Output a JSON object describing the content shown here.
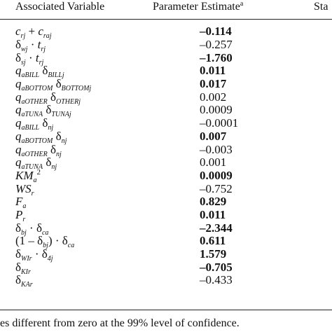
{
  "header": {
    "variable": "Associated Variable",
    "estimate": "Parameter Estimate",
    "estimate_sup": "a",
    "third_partial": "Sta"
  },
  "rows": [
    {
      "variable": "c_rj + c_raj",
      "estimate": "–0.114",
      "bold": true
    },
    {
      "variable": "δ_wj · t_rj",
      "estimate": "–0.257",
      "bold": false
    },
    {
      "variable": "δ_sj · t_rj",
      "estimate": "–1.760",
      "bold": true
    },
    {
      "variable": "q_aBILL δ_BILLj",
      "estimate": "0.011",
      "bold": true
    },
    {
      "variable": "q_aBOTTOM δ_BOTTOMj",
      "estimate": "0.017",
      "bold": true
    },
    {
      "variable": "q_aOTHER δ_OTHERj",
      "estimate": "0.002",
      "bold": false
    },
    {
      "variable": "q_aTUNA δ_TUNAj",
      "estimate": "0.0009",
      "bold": false
    },
    {
      "variable": "q_aBILL δ_nj",
      "estimate": "–0.0001",
      "bold": false
    },
    {
      "variable": "q_aBOTTOM δ_nj",
      "estimate": "0.007",
      "bold": true
    },
    {
      "variable": "q_aOTHER δ_nj",
      "estimate": "–0.003",
      "bold": false
    },
    {
      "variable": "q_aTUNA δ_nj",
      "estimate": "0.001",
      "bold": false
    },
    {
      "variable": "KM_a^2",
      "estimate": "0.0009",
      "bold": true
    },
    {
      "variable": "WS_r",
      "estimate": "–0.752",
      "bold": false
    },
    {
      "variable": "F_a",
      "estimate": "0.829",
      "bold": true
    },
    {
      "variable": "P_r",
      "estimate": "0.011",
      "bold": true
    },
    {
      "variable": "δ_bj · δ_ca",
      "estimate": "–2.344",
      "bold": true
    },
    {
      "variable": "(1 – δ_bj) · δ_ca",
      "estimate": "0.611",
      "bold": true
    },
    {
      "variable": "δ_WIr · δ_4j",
      "estimate": "1.579",
      "bold": true
    },
    {
      "variable": "δ_KIr",
      "estimate": "–0.705",
      "bold": true
    },
    {
      "variable": "δ_KAr",
      "estimate": "–0.433",
      "bold": false
    }
  ],
  "footnote": "es different from zero at the 99% level of confidence."
}
